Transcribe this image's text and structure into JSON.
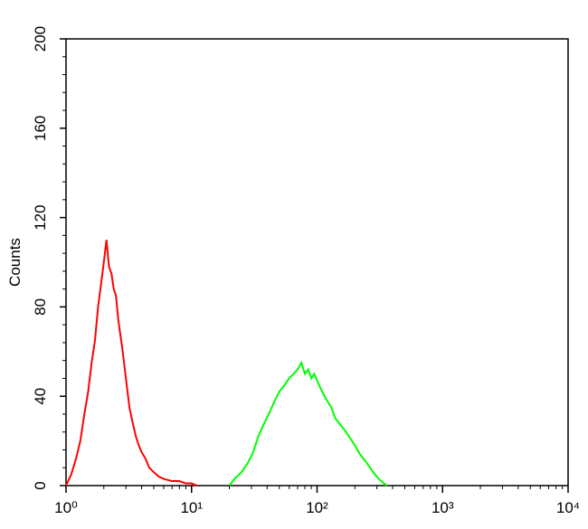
{
  "chart_data": {
    "type": "line",
    "y_label": "Counts",
    "x_scale": "log",
    "xlim": [
      1,
      10000
    ],
    "xticks": [
      {
        "value": 1,
        "label": "10⁰"
      },
      {
        "value": 10,
        "label": "10¹"
      },
      {
        "value": 100,
        "label": "10²"
      },
      {
        "value": 1000,
        "label": "10³"
      },
      {
        "value": 10000,
        "label": "10⁴"
      }
    ],
    "ylim": [
      0,
      200
    ],
    "yticks": [
      0,
      40,
      80,
      120,
      160,
      200
    ],
    "series": [
      {
        "color": "#ff0000",
        "x": [
          1.0,
          1.1,
          1.2,
          1.3,
          1.4,
          1.5,
          1.6,
          1.7,
          1.8,
          1.9,
          2.0,
          2.1,
          2.2,
          2.3,
          2.4,
          2.5,
          2.6,
          2.7,
          2.8,
          3.0,
          3.2,
          3.4,
          3.6,
          3.8,
          4.0,
          4.3,
          4.6,
          5.0,
          5.5,
          6.0,
          7,
          8,
          9,
          10,
          11
        ],
        "values": [
          0,
          5,
          12,
          20,
          32,
          42,
          55,
          65,
          80,
          90,
          100,
          110,
          98,
          95,
          88,
          85,
          75,
          68,
          62,
          48,
          35,
          28,
          22,
          18,
          15,
          12,
          8,
          6,
          4,
          3,
          2,
          2,
          1,
          1,
          0
        ]
      },
      {
        "color": "#00ff00",
        "x": [
          20,
          22,
          25,
          28,
          31,
          34,
          38,
          42,
          46,
          50,
          55,
          60,
          65,
          70,
          75,
          80,
          85,
          90,
          95,
          100,
          110,
          120,
          130,
          140,
          150,
          165,
          180,
          200,
          220,
          250,
          280,
          310,
          340,
          360
        ],
        "values": [
          0,
          3,
          6,
          10,
          15,
          22,
          28,
          33,
          38,
          42,
          45,
          48,
          50,
          52,
          55,
          50,
          52,
          48,
          50,
          47,
          42,
          38,
          35,
          30,
          28,
          25,
          22,
          18,
          14,
          10,
          6,
          3,
          1,
          0
        ]
      }
    ]
  }
}
